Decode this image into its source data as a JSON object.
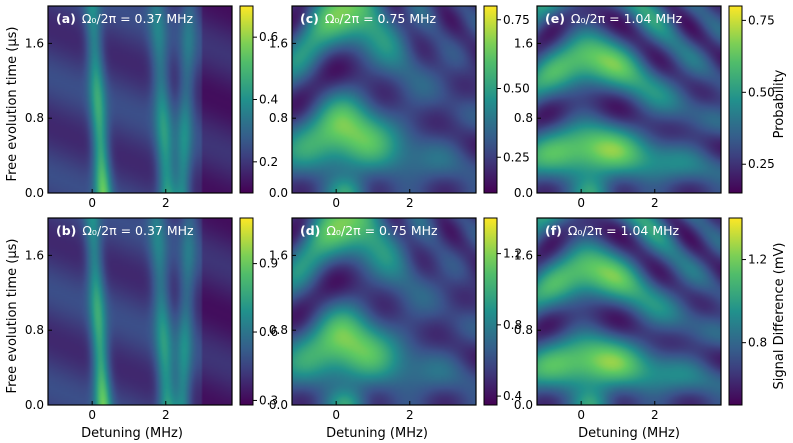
{
  "figure": {
    "y_label_top": "Free evolution time (μs)",
    "y_label_bottom": "Free evolution time (μs)",
    "x_label": "Detuning (MHz)",
    "colorbar_label_top": "Probability",
    "colorbar_label_bottom": "Signal Difference (mV)",
    "colormap": "viridis",
    "colors": [
      "#440154",
      "#3b528b",
      "#21918c",
      "#5ec962",
      "#fde725"
    ]
  },
  "chart_data": [
    {
      "type": "heatmap",
      "panel": "(a)",
      "title": "Ω₀/2π = 0.37 MHz",
      "omega_mhz": 0.37,
      "xlim": [
        -1.2,
        3.8
      ],
      "ylim": [
        0,
        2.0
      ],
      "x_ticks": [
        0,
        2
      ],
      "y_ticks": [
        0.0,
        0.8,
        1.6
      ],
      "x_tick_labels": [
        "0",
        "2"
      ],
      "y_tick_labels": [
        "0.0",
        "0.8",
        "1.6"
      ],
      "colorbar": {
        "range": [
          0.1,
          0.7
        ],
        "ticks": [
          0.2,
          0.4,
          0.6
        ],
        "tick_labels": [
          "0.2",
          "0.4",
          "0.6"
        ]
      }
    },
    {
      "type": "heatmap",
      "panel": "(c)",
      "title": "Ω₀/2π = 0.75 MHz",
      "omega_mhz": 0.75,
      "xlim": [
        -1.2,
        3.8
      ],
      "ylim": [
        0,
        2.0
      ],
      "x_ticks": [
        0,
        2
      ],
      "y_ticks": [
        0.0,
        0.8,
        1.6
      ],
      "x_tick_labels": [
        "0",
        "2"
      ],
      "y_tick_labels": [
        "0.0",
        "0.8",
        "1.6"
      ],
      "colorbar": {
        "range": [
          0.12,
          0.8
        ],
        "ticks": [
          0.25,
          0.5,
          0.75
        ],
        "tick_labels": [
          "0.25",
          "0.50",
          "0.75"
        ]
      }
    },
    {
      "type": "heatmap",
      "panel": "(e)",
      "title": "Ω₀/2π = 1.04 MHz",
      "omega_mhz": 1.04,
      "xlim": [
        -1.2,
        3.8
      ],
      "ylim": [
        0,
        2.0
      ],
      "x_ticks": [
        0,
        2
      ],
      "y_ticks": [
        0.0,
        0.8,
        1.6
      ],
      "x_tick_labels": [
        "0",
        "2"
      ],
      "y_tick_labels": [
        "0.0",
        "0.8",
        "1.6"
      ],
      "colorbar": {
        "range": [
          0.15,
          0.8
        ],
        "ticks": [
          0.25,
          0.5,
          0.75
        ],
        "tick_labels": [
          "0.25",
          "0.50",
          "0.75"
        ]
      }
    },
    {
      "type": "heatmap",
      "panel": "(b)",
      "title": "Ω₀/2π = 0.37 MHz",
      "omega_mhz": 0.37,
      "xlim": [
        -1.2,
        3.8
      ],
      "ylim": [
        0,
        2.0
      ],
      "x_ticks": [
        0,
        2
      ],
      "y_ticks": [
        0.0,
        0.8,
        1.6
      ],
      "x_tick_labels": [
        "0",
        "2"
      ],
      "y_tick_labels": [
        "0.0",
        "0.8",
        "1.6"
      ],
      "colorbar": {
        "range": [
          0.28,
          1.1
        ],
        "ticks": [
          0.3,
          0.6,
          0.9
        ],
        "tick_labels": [
          "0.3",
          "0.6",
          "0.9"
        ]
      }
    },
    {
      "type": "heatmap",
      "panel": "(d)",
      "title": "Ω₀/2π = 0.75 MHz",
      "omega_mhz": 0.75,
      "xlim": [
        -1.2,
        3.8
      ],
      "ylim": [
        0,
        2.0
      ],
      "x_ticks": [
        0,
        2
      ],
      "y_ticks": [
        0.0,
        0.8,
        1.6
      ],
      "x_tick_labels": [
        "0",
        "2"
      ],
      "y_tick_labels": [
        "0.0",
        "0.8",
        "1.6"
      ],
      "colorbar": {
        "range": [
          0.35,
          1.4
        ],
        "ticks": [
          0.4,
          0.8,
          1.2
        ],
        "tick_labels": [
          "0.4",
          "0.8",
          "1.2"
        ]
      }
    },
    {
      "type": "heatmap",
      "panel": "(f)",
      "title": "Ω₀/2π = 1.04 MHz",
      "omega_mhz": 1.04,
      "xlim": [
        -1.2,
        3.8
      ],
      "ylim": [
        0,
        2.0
      ],
      "x_ticks": [
        0,
        2
      ],
      "y_ticks": [
        0.0,
        0.8,
        1.6
      ],
      "x_tick_labels": [
        "0",
        "2"
      ],
      "y_tick_labels": [
        "0.0",
        "0.8",
        "1.6"
      ],
      "colorbar": {
        "range": [
          0.5,
          1.4
        ],
        "ticks": [
          0.8,
          1.2
        ],
        "tick_labels": [
          "0.8",
          "1.2"
        ]
      }
    }
  ]
}
